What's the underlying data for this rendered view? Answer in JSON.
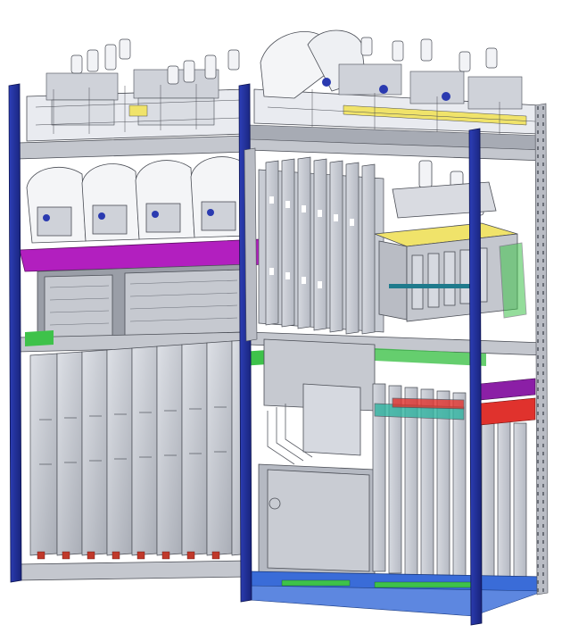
{
  "image": {
    "kind": "isometric CAD rendering of a storage rack with fixtures",
    "caption": ""
  },
  "colors": {
    "background": "#ffffff",
    "upright_blue": "#1f2f9e",
    "upright_blue_dark": "#141f6e",
    "frame_gray": "#b9bcc4",
    "frame_gray_dark": "#8c9099",
    "plate_gray": "#c8ccd4",
    "plate_light": "#e4e6ec",
    "line": "#4a4d55",
    "magenta": "#b21fbf",
    "yellow": "#f0e36a",
    "teal": "#2fb3a0",
    "green": "#3ec24a",
    "red": "#e0322d",
    "purple": "#8b1fa6",
    "base_blue": "#3a6cd8"
  },
  "icons": {
    "rack": "storage-rack-icon",
    "cylinder": "cylinder-clamp-icon",
    "plate": "fixture-plate-icon"
  },
  "shelves": [
    {
      "name": "top-shelf"
    },
    {
      "name": "middle-shelf"
    },
    {
      "name": "lower-shelf"
    },
    {
      "name": "bottom-shelf"
    }
  ]
}
